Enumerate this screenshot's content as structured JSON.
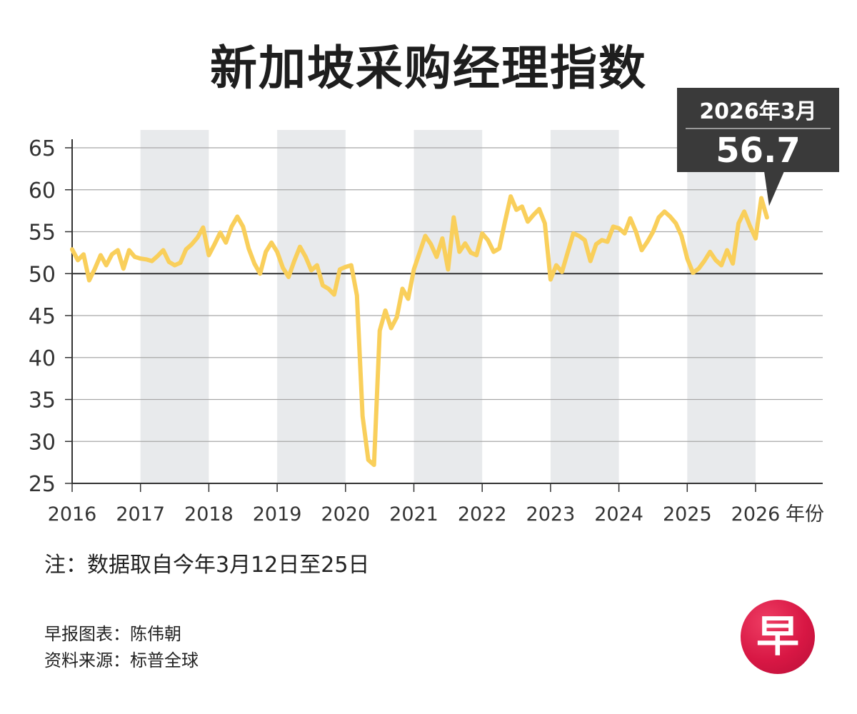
{
  "title": "新加坡采购经理指数",
  "callout": {
    "date": "2026年3月",
    "value": "56.7"
  },
  "note": "注：数据取自今年3月12日至25日",
  "credits": [
    "早报图表：陈伟朝",
    "资料来源：标普全球"
  ],
  "logo": "早",
  "colors": {
    "line": "#f9cf5b",
    "band": "#e8eaec",
    "grid": "#a8a8a8",
    "axis": "#333333",
    "callout": "#3a3a3a",
    "logo": "#d81744"
  },
  "chart_data": {
    "type": "line",
    "title": "新加坡采购经理指数",
    "xlabel": "年份",
    "ylabel": "",
    "ylim": [
      25,
      65
    ],
    "y_ticks": [
      25,
      30,
      35,
      40,
      45,
      50,
      55,
      60,
      65
    ],
    "x_ticks": [
      "2016",
      "2017",
      "2018",
      "2019",
      "2020",
      "2021",
      "2022",
      "2023",
      "2024",
      "2025",
      "2026"
    ],
    "x_unit": "年份",
    "reference_line": 50,
    "shaded_years": [
      "2017",
      "2019",
      "2021",
      "2023",
      "2025"
    ],
    "annotation": {
      "label": "2026年3月",
      "value": 56.7
    },
    "series": [
      {
        "values": [
          {
            "x": "2016-01",
            "y": 52.9
          },
          {
            "x": "2016-02",
            "y": 51.6
          },
          {
            "x": "2016-03",
            "y": 52.3
          },
          {
            "x": "2016-04",
            "y": 49.2
          },
          {
            "x": "2016-05",
            "y": 50.6
          },
          {
            "x": "2016-06",
            "y": 52.2
          },
          {
            "x": "2016-07",
            "y": 51.0
          },
          {
            "x": "2016-08",
            "y": 52.3
          },
          {
            "x": "2016-09",
            "y": 52.8
          },
          {
            "x": "2016-10",
            "y": 50.6
          },
          {
            "x": "2016-11",
            "y": 52.8
          },
          {
            "x": "2016-12",
            "y": 52.0
          },
          {
            "x": "2017-01",
            "y": 51.8
          },
          {
            "x": "2017-02",
            "y": 51.7
          },
          {
            "x": "2017-03",
            "y": 51.5
          },
          {
            "x": "2017-04",
            "y": 52.1
          },
          {
            "x": "2017-05",
            "y": 52.8
          },
          {
            "x": "2017-06",
            "y": 51.4
          },
          {
            "x": "2017-07",
            "y": 51.0
          },
          {
            "x": "2017-08",
            "y": 51.3
          },
          {
            "x": "2017-09",
            "y": 52.9
          },
          {
            "x": "2017-10",
            "y": 53.5
          },
          {
            "x": "2017-11",
            "y": 54.3
          },
          {
            "x": "2017-12",
            "y": 55.5
          },
          {
            "x": "2018-01",
            "y": 52.2
          },
          {
            "x": "2018-02",
            "y": 53.5
          },
          {
            "x": "2018-03",
            "y": 54.9
          },
          {
            "x": "2018-04",
            "y": 53.7
          },
          {
            "x": "2018-05",
            "y": 55.6
          },
          {
            "x": "2018-06",
            "y": 56.8
          },
          {
            "x": "2018-07",
            "y": 55.6
          },
          {
            "x": "2018-08",
            "y": 53.0
          },
          {
            "x": "2018-09",
            "y": 51.2
          },
          {
            "x": "2018-10",
            "y": 50.0
          },
          {
            "x": "2018-11",
            "y": 52.6
          },
          {
            "x": "2018-12",
            "y": 53.7
          },
          {
            "x": "2019-01",
            "y": 52.6
          },
          {
            "x": "2019-02",
            "y": 50.7
          },
          {
            "x": "2019-03",
            "y": 49.6
          },
          {
            "x": "2019-04",
            "y": 51.5
          },
          {
            "x": "2019-05",
            "y": 53.2
          },
          {
            "x": "2019-06",
            "y": 52.0
          },
          {
            "x": "2019-07",
            "y": 50.4
          },
          {
            "x": "2019-08",
            "y": 51.0
          },
          {
            "x": "2019-09",
            "y": 48.6
          },
          {
            "x": "2019-10",
            "y": 48.2
          },
          {
            "x": "2019-11",
            "y": 47.5
          },
          {
            "x": "2019-12",
            "y": 50.5
          },
          {
            "x": "2020-01",
            "y": 50.8
          },
          {
            "x": "2020-02",
            "y": 51.0
          },
          {
            "x": "2020-03",
            "y": 47.4
          },
          {
            "x": "2020-04",
            "y": 33.0
          },
          {
            "x": "2020-05",
            "y": 27.8
          },
          {
            "x": "2020-06",
            "y": 27.2
          },
          {
            "x": "2020-07",
            "y": 43.2
          },
          {
            "x": "2020-08",
            "y": 45.6
          },
          {
            "x": "2020-09",
            "y": 43.5
          },
          {
            "x": "2020-10",
            "y": 44.8
          },
          {
            "x": "2020-11",
            "y": 48.2
          },
          {
            "x": "2020-12",
            "y": 47.0
          },
          {
            "x": "2021-01",
            "y": 50.5
          },
          {
            "x": "2021-02",
            "y": 52.5
          },
          {
            "x": "2021-03",
            "y": 54.5
          },
          {
            "x": "2021-04",
            "y": 53.5
          },
          {
            "x": "2021-05",
            "y": 52.0
          },
          {
            "x": "2021-06",
            "y": 54.2
          },
          {
            "x": "2021-07",
            "y": 50.5
          },
          {
            "x": "2021-08",
            "y": 56.7
          },
          {
            "x": "2021-09",
            "y": 52.6
          },
          {
            "x": "2021-10",
            "y": 53.6
          },
          {
            "x": "2021-11",
            "y": 52.5
          },
          {
            "x": "2021-12",
            "y": 52.2
          },
          {
            "x": "2022-01",
            "y": 54.8
          },
          {
            "x": "2022-02",
            "y": 54.0
          },
          {
            "x": "2022-03",
            "y": 52.6
          },
          {
            "x": "2022-04",
            "y": 53.0
          },
          {
            "x": "2022-05",
            "y": 56.2
          },
          {
            "x": "2022-06",
            "y": 59.2
          },
          {
            "x": "2022-07",
            "y": 57.6
          },
          {
            "x": "2022-08",
            "y": 58.0
          },
          {
            "x": "2022-09",
            "y": 56.2
          },
          {
            "x": "2022-10",
            "y": 57.0
          },
          {
            "x": "2022-11",
            "y": 57.7
          },
          {
            "x": "2022-12",
            "y": 56.0
          },
          {
            "x": "2023-01",
            "y": 49.3
          },
          {
            "x": "2023-02",
            "y": 51.0
          },
          {
            "x": "2023-03",
            "y": 50.2
          },
          {
            "x": "2023-04",
            "y": 52.5
          },
          {
            "x": "2023-05",
            "y": 54.8
          },
          {
            "x": "2023-06",
            "y": 54.5
          },
          {
            "x": "2023-07",
            "y": 54.0
          },
          {
            "x": "2023-08",
            "y": 51.5
          },
          {
            "x": "2023-09",
            "y": 53.5
          },
          {
            "x": "2023-10",
            "y": 54.0
          },
          {
            "x": "2023-11",
            "y": 53.8
          },
          {
            "x": "2023-12",
            "y": 55.6
          },
          {
            "x": "2024-01",
            "y": 55.4
          },
          {
            "x": "2024-02",
            "y": 54.8
          },
          {
            "x": "2024-03",
            "y": 56.6
          },
          {
            "x": "2024-04",
            "y": 55.0
          },
          {
            "x": "2024-05",
            "y": 52.8
          },
          {
            "x": "2024-06",
            "y": 53.8
          },
          {
            "x": "2024-07",
            "y": 55.0
          },
          {
            "x": "2024-08",
            "y": 56.7
          },
          {
            "x": "2024-09",
            "y": 57.4
          },
          {
            "x": "2024-10",
            "y": 56.8
          },
          {
            "x": "2024-11",
            "y": 56.0
          },
          {
            "x": "2024-12",
            "y": 54.5
          },
          {
            "x": "2025-01",
            "y": 51.8
          },
          {
            "x": "2025-02",
            "y": 50.1
          },
          {
            "x": "2025-03",
            "y": 50.6
          },
          {
            "x": "2025-04",
            "y": 51.5
          },
          {
            "x": "2025-05",
            "y": 52.6
          },
          {
            "x": "2025-06",
            "y": 51.6
          },
          {
            "x": "2025-07",
            "y": 51.0
          },
          {
            "x": "2025-08",
            "y": 52.8
          },
          {
            "x": "2025-09",
            "y": 51.2
          },
          {
            "x": "2025-10",
            "y": 56.0
          },
          {
            "x": "2025-11",
            "y": 57.4
          },
          {
            "x": "2025-12",
            "y": 55.7
          },
          {
            "x": "2026-01",
            "y": 54.2
          },
          {
            "x": "2026-02",
            "y": 59.0
          },
          {
            "x": "2026-03",
            "y": 56.7
          }
        ]
      }
    ]
  }
}
